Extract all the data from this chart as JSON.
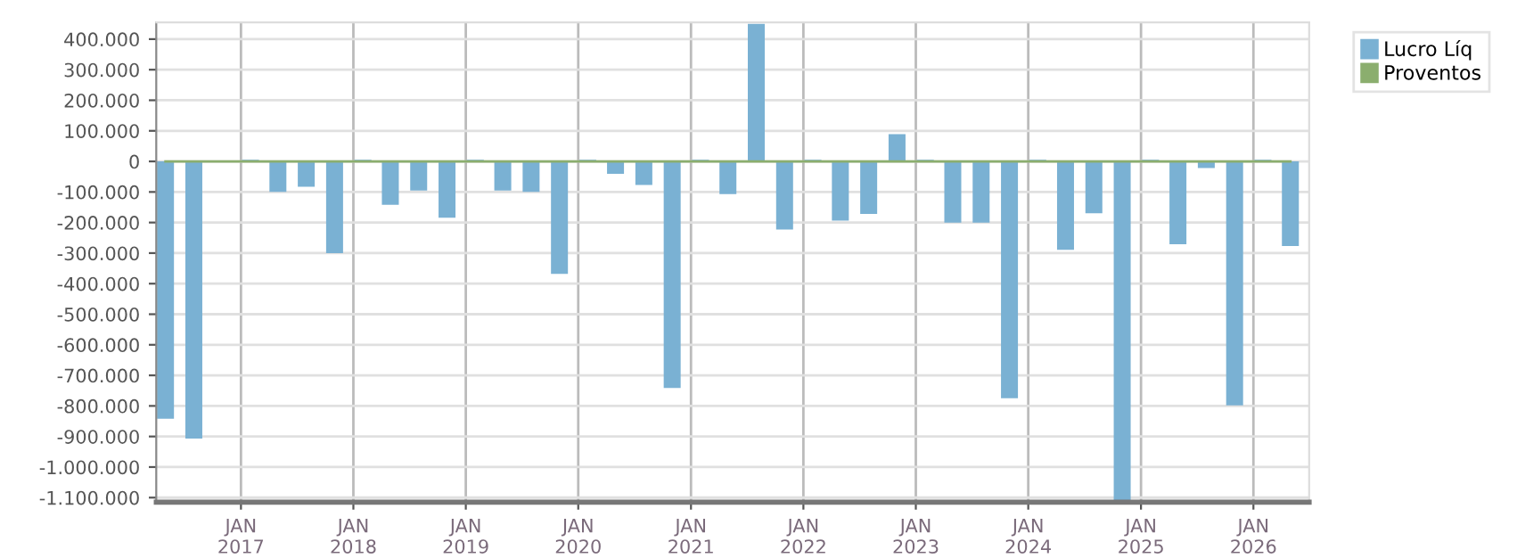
{
  "chart_data": {
    "type": "bar",
    "x": [
      "2016-05",
      "2016-08",
      "2016-11",
      "2017-02",
      "2017-05",
      "2017-08",
      "2017-11",
      "2018-02",
      "2018-05",
      "2018-08",
      "2018-11",
      "2019-02",
      "2019-05",
      "2019-08",
      "2019-11",
      "2020-02",
      "2020-05",
      "2020-08",
      "2020-11",
      "2021-02",
      "2021-05",
      "2021-08",
      "2021-11",
      "2022-02",
      "2022-05",
      "2022-08",
      "2022-11",
      "2023-02",
      "2023-05",
      "2023-08",
      "2023-11",
      "2024-02",
      "2024-05",
      "2024-08",
      "2024-11",
      "2025-02",
      "2025-05",
      "2025-08",
      "2025-11",
      "2026-02",
      "2026-05"
    ],
    "series": [
      {
        "name": "Lucro Líq",
        "color": "#7ab1d3",
        "values": [
          -842000,
          -907000,
          null,
          5000,
          -100000,
          -83000,
          -300000,
          5000,
          -142000,
          -95000,
          -184000,
          5000,
          -95000,
          -100000,
          -368000,
          5000,
          -41000,
          -77000,
          -741000,
          5000,
          -107000,
          450000,
          -223000,
          5000,
          -194000,
          -172000,
          89000,
          5000,
          -200000,
          -200000,
          -775000,
          5000,
          -289000,
          -170000,
          -1110000,
          5000,
          -271000,
          -22000,
          -798000,
          5000,
          -277000
        ]
      },
      {
        "name": "Proventos",
        "type": "line",
        "color": "#8bae6e",
        "values": [
          0,
          0,
          0,
          0,
          0,
          0,
          0,
          0,
          0,
          0,
          0,
          0,
          0,
          0,
          0,
          0,
          0,
          0,
          0,
          0,
          0,
          0,
          0,
          0,
          0,
          0,
          0,
          0,
          0,
          0,
          0,
          0,
          0,
          0,
          0,
          0,
          0,
          0,
          0,
          0,
          0
        ]
      }
    ],
    "xlim": [
      "2016-04",
      "2026-07"
    ],
    "xticks": [
      {
        "value": "2017-01-01",
        "label": "JAN\n2017"
      },
      {
        "value": "2018-01-01",
        "label": "JAN\n2018"
      },
      {
        "value": "2019-01-01",
        "label": "JAN\n2019"
      },
      {
        "value": "2020-01-01",
        "label": "JAN\n2020"
      },
      {
        "value": "2021-01-01",
        "label": "JAN\n2021"
      },
      {
        "value": "2022-01-01",
        "label": "JAN\n2022"
      },
      {
        "value": "2023-01-01",
        "label": "JAN\n2023"
      },
      {
        "value": "2024-01-01",
        "label": "JAN\n2024"
      },
      {
        "value": "2025-01-01",
        "label": "JAN\n2025"
      },
      {
        "value": "2026-01-01",
        "label": "JAN\n2026"
      }
    ],
    "ylim": [
      -1115000,
      455000
    ],
    "yticks": [
      {
        "value": 400000,
        "label": "400.000"
      },
      {
        "value": 300000,
        "label": "300.000"
      },
      {
        "value": 200000,
        "label": "200.000"
      },
      {
        "value": 100000,
        "label": "100.000"
      },
      0,
      {
        "value": -100000,
        "label": "-100.000"
      },
      {
        "value": -200000,
        "label": "-200.000"
      },
      {
        "value": -300000,
        "label": "-300.000"
      },
      {
        "value": -400000,
        "label": "-400.000"
      },
      {
        "value": -500000,
        "label": "-500.000"
      },
      {
        "value": -600000,
        "label": "-600.000"
      },
      {
        "value": -700000,
        "label": "-700.000"
      },
      {
        "value": -800000,
        "label": "-800.000"
      },
      {
        "value": -900000,
        "label": "-900.000"
      },
      {
        "value": -1000000,
        "label": "-1.000.000"
      },
      {
        "value": -1100000,
        "label": "-1.100.000"
      }
    ],
    "grid": true,
    "legend": "top right"
  }
}
